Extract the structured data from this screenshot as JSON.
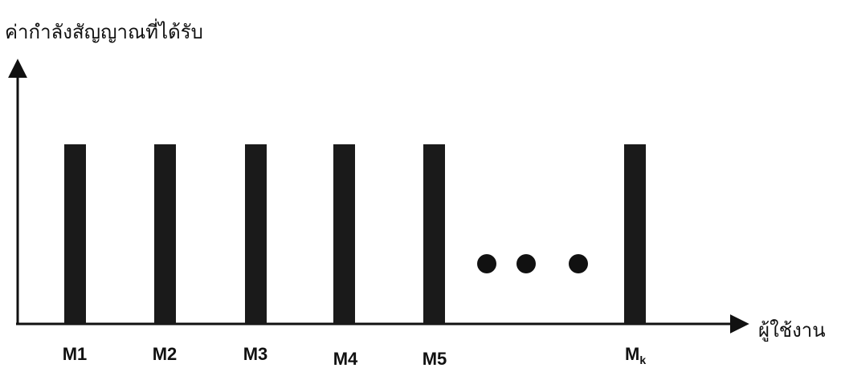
{
  "diagram": {
    "y_axis_label": "ค่ากำลังสัญญาณที่ได้รับ",
    "x_axis_label": "ผู้ใช้งาน",
    "users": [
      "M1",
      "M2",
      "M3",
      "M4",
      "M5"
    ],
    "last_user": {
      "base": "M",
      "subscript": "k"
    }
  }
}
